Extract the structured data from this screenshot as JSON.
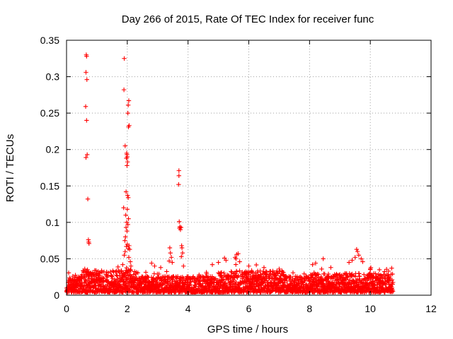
{
  "chart_data": {
    "type": "scatter",
    "title": "Day 266 of 2015, Rate Of TEC Index for receiver func",
    "xlabel": "GPS time / hours",
    "ylabel": "ROTI / TECUs",
    "xlim": [
      0,
      12
    ],
    "ylim": [
      0,
      0.35
    ],
    "xticks": [
      0,
      2,
      4,
      6,
      8,
      10,
      12
    ],
    "yticks": [
      0,
      0.05,
      0.1,
      0.15,
      0.2,
      0.25,
      0.3,
      0.35
    ],
    "xtick_labels": [
      "0",
      "2",
      "4",
      "6",
      "8",
      "10",
      "12"
    ],
    "ytick_labels": [
      "0",
      "0.05",
      "0.1",
      "0.15",
      "0.2",
      "0.25",
      "0.3",
      "0.35"
    ],
    "grid": true,
    "marker": "+",
    "color": "#ff0000",
    "series": [
      {
        "name": "ROTI",
        "note": "dense background points spanning 0 to 10.75 h mostly below 0.035 TECU/s are generated procedurally",
        "background_x_range": [
          0,
          10.75
        ],
        "peaks": [
          {
            "x": 0.65,
            "y": 0.33
          },
          {
            "x": 0.66,
            "y": 0.328
          },
          {
            "x": 0.64,
            "y": 0.306
          },
          {
            "x": 0.67,
            "y": 0.296
          },
          {
            "x": 0.63,
            "y": 0.259
          },
          {
            "x": 0.66,
            "y": 0.24
          },
          {
            "x": 0.68,
            "y": 0.193
          },
          {
            "x": 0.64,
            "y": 0.189
          },
          {
            "x": 0.7,
            "y": 0.132
          },
          {
            "x": 0.72,
            "y": 0.076
          },
          {
            "x": 0.74,
            "y": 0.071
          },
          {
            "x": 0.73,
            "y": 0.073
          },
          {
            "x": 0.6,
            "y": 0.036
          },
          {
            "x": 0.69,
            "y": 0.035
          },
          {
            "x": 1.9,
            "y": 0.325
          },
          {
            "x": 1.89,
            "y": 0.282
          },
          {
            "x": 2.05,
            "y": 0.267
          },
          {
            "x": 2.03,
            "y": 0.261
          },
          {
            "x": 2.02,
            "y": 0.25
          },
          {
            "x": 2.06,
            "y": 0.233
          },
          {
            "x": 2.04,
            "y": 0.231
          },
          {
            "x": 1.93,
            "y": 0.205
          },
          {
            "x": 1.98,
            "y": 0.195
          },
          {
            "x": 1.99,
            "y": 0.193
          },
          {
            "x": 2.0,
            "y": 0.19
          },
          {
            "x": 1.97,
            "y": 0.188
          },
          {
            "x": 2.01,
            "y": 0.183
          },
          {
            "x": 1.99,
            "y": 0.178
          },
          {
            "x": 1.96,
            "y": 0.142
          },
          {
            "x": 2.01,
            "y": 0.137
          },
          {
            "x": 2.03,
            "y": 0.134
          },
          {
            "x": 1.88,
            "y": 0.12
          },
          {
            "x": 2.0,
            "y": 0.118
          },
          {
            "x": 1.95,
            "y": 0.11
          },
          {
            "x": 2.04,
            "y": 0.105
          },
          {
            "x": 1.98,
            "y": 0.1
          },
          {
            "x": 2.02,
            "y": 0.097
          },
          {
            "x": 1.96,
            "y": 0.093
          },
          {
            "x": 1.99,
            "y": 0.088
          },
          {
            "x": 1.94,
            "y": 0.08
          },
          {
            "x": 1.92,
            "y": 0.075
          },
          {
            "x": 2.0,
            "y": 0.07
          },
          {
            "x": 1.97,
            "y": 0.067
          },
          {
            "x": 2.03,
            "y": 0.064
          },
          {
            "x": 1.93,
            "y": 0.06
          },
          {
            "x": 2.06,
            "y": 0.068
          },
          {
            "x": 2.08,
            "y": 0.063
          },
          {
            "x": 1.9,
            "y": 0.055
          },
          {
            "x": 2.05,
            "y": 0.052
          },
          {
            "x": 2.1,
            "y": 0.046
          },
          {
            "x": 2.12,
            "y": 0.04
          },
          {
            "x": 1.85,
            "y": 0.042
          },
          {
            "x": 3.7,
            "y": 0.171
          },
          {
            "x": 3.7,
            "y": 0.164
          },
          {
            "x": 3.69,
            "y": 0.152
          },
          {
            "x": 3.71,
            "y": 0.101
          },
          {
            "x": 3.73,
            "y": 0.094
          },
          {
            "x": 3.72,
            "y": 0.092
          },
          {
            "x": 3.75,
            "y": 0.09
          },
          {
            "x": 3.77,
            "y": 0.093
          },
          {
            "x": 3.79,
            "y": 0.068
          },
          {
            "x": 3.8,
            "y": 0.065
          },
          {
            "x": 3.82,
            "y": 0.058
          },
          {
            "x": 3.78,
            "y": 0.053
          },
          {
            "x": 3.85,
            "y": 0.04
          },
          {
            "x": 3.4,
            "y": 0.065
          },
          {
            "x": 3.42,
            "y": 0.058
          },
          {
            "x": 3.45,
            "y": 0.052
          },
          {
            "x": 3.38,
            "y": 0.047
          },
          {
            "x": 3.48,
            "y": 0.045
          },
          {
            "x": 2.8,
            "y": 0.044
          },
          {
            "x": 2.9,
            "y": 0.04
          },
          {
            "x": 3.1,
            "y": 0.038
          },
          {
            "x": 4.8,
            "y": 0.042
          },
          {
            "x": 5.0,
            "y": 0.045
          },
          {
            "x": 5.2,
            "y": 0.051
          },
          {
            "x": 5.25,
            "y": 0.048
          },
          {
            "x": 5.55,
            "y": 0.052
          },
          {
            "x": 5.6,
            "y": 0.056
          },
          {
            "x": 5.65,
            "y": 0.057
          },
          {
            "x": 5.58,
            "y": 0.05
          },
          {
            "x": 5.7,
            "y": 0.046
          },
          {
            "x": 6.0,
            "y": 0.04
          },
          {
            "x": 6.5,
            "y": 0.038
          },
          {
            "x": 7.0,
            "y": 0.036
          },
          {
            "x": 8.1,
            "y": 0.042
          },
          {
            "x": 8.2,
            "y": 0.044
          },
          {
            "x": 8.45,
            "y": 0.05
          },
          {
            "x": 8.7,
            "y": 0.038
          },
          {
            "x": 9.3,
            "y": 0.045
          },
          {
            "x": 9.4,
            "y": 0.048
          },
          {
            "x": 9.5,
            "y": 0.052
          },
          {
            "x": 9.55,
            "y": 0.063
          },
          {
            "x": 9.58,
            "y": 0.06
          },
          {
            "x": 9.62,
            "y": 0.055
          },
          {
            "x": 9.7,
            "y": 0.05
          },
          {
            "x": 9.75,
            "y": 0.046
          },
          {
            "x": 10.0,
            "y": 0.036
          },
          {
            "x": 10.3,
            "y": 0.035
          },
          {
            "x": 10.6,
            "y": 0.033
          }
        ]
      }
    ]
  }
}
